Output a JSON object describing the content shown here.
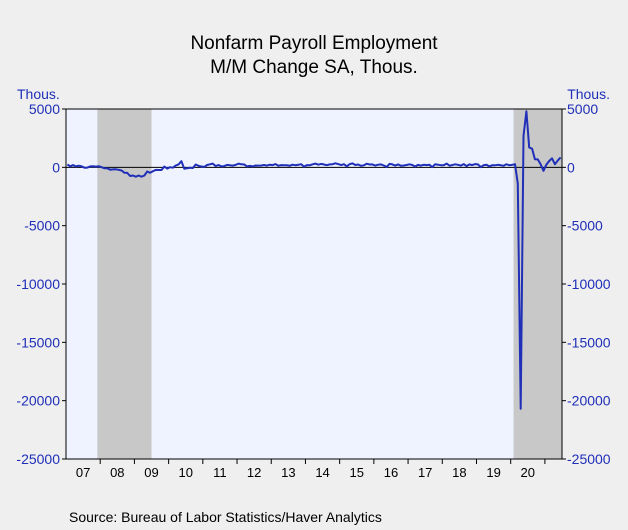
{
  "chart_data": {
    "type": "line",
    "title": "Nonfarm Payroll Employment",
    "subtitle": "M/M Change   SA, Thous.",
    "ylabel_left": "Thous.",
    "ylabel_right": "Thous.",
    "ylim": [
      -25000,
      5000
    ],
    "yticks": [
      5000,
      0,
      -5000,
      -10000,
      -15000,
      -20000,
      -25000
    ],
    "ytick_labels": [
      "5000",
      "0",
      "-5000",
      "-10000",
      "-15000",
      "-20000",
      "-25000"
    ],
    "x_start": "2007-01",
    "x_end": "2021-06",
    "xtick_labels": [
      "07",
      "08",
      "09",
      "10",
      "11",
      "12",
      "13",
      "14",
      "15",
      "16",
      "17",
      "18",
      "19",
      "20"
    ],
    "recessions": [
      {
        "start": "2007-12",
        "end": "2009-06"
      },
      {
        "start": "2020-02",
        "end": "2021-06"
      }
    ],
    "colors": {
      "line": "#1f2fb8",
      "recession": "#c8c8c8",
      "plot_bg": "#eef3ff",
      "zero_line": "#000000"
    },
    "grid": false,
    "series": [
      {
        "x": [
          "2007-01",
          "2007-02",
          "2007-03",
          "2007-04",
          "2007-05",
          "2007-06",
          "2007-07",
          "2007-08",
          "2007-09",
          "2007-10",
          "2007-11",
          "2007-12",
          "2008-01",
          "2008-02",
          "2008-03",
          "2008-04",
          "2008-05",
          "2008-06",
          "2008-07",
          "2008-08",
          "2008-09",
          "2008-10",
          "2008-11",
          "2008-12",
          "2009-01",
          "2009-02",
          "2009-03",
          "2009-04",
          "2009-05",
          "2009-06",
          "2009-07",
          "2009-08",
          "2009-09",
          "2009-10",
          "2009-11",
          "2009-12",
          "2010-01",
          "2010-02",
          "2010-03",
          "2010-04",
          "2010-05",
          "2010-06",
          "2010-07",
          "2010-08",
          "2010-09",
          "2010-10",
          "2010-11",
          "2010-12",
          "2011-01",
          "2011-02",
          "2011-03",
          "2011-04",
          "2011-05",
          "2011-06",
          "2011-07",
          "2011-08",
          "2011-09",
          "2011-10",
          "2011-11",
          "2011-12",
          "2012-01",
          "2012-02",
          "2012-03",
          "2012-04",
          "2012-05",
          "2012-06",
          "2012-07",
          "2012-08",
          "2012-09",
          "2012-10",
          "2012-11",
          "2012-12",
          "2013-01",
          "2013-02",
          "2013-03",
          "2013-04",
          "2013-05",
          "2013-06",
          "2013-07",
          "2013-08",
          "2013-09",
          "2013-10",
          "2013-11",
          "2013-12",
          "2014-01",
          "2014-02",
          "2014-03",
          "2014-04",
          "2014-05",
          "2014-06",
          "2014-07",
          "2014-08",
          "2014-09",
          "2014-10",
          "2014-11",
          "2014-12",
          "2015-01",
          "2015-02",
          "2015-03",
          "2015-04",
          "2015-05",
          "2015-06",
          "2015-07",
          "2015-08",
          "2015-09",
          "2015-10",
          "2015-11",
          "2015-12",
          "2016-01",
          "2016-02",
          "2016-03",
          "2016-04",
          "2016-05",
          "2016-06",
          "2016-07",
          "2016-08",
          "2016-09",
          "2016-10",
          "2016-11",
          "2016-12",
          "2017-01",
          "2017-02",
          "2017-03",
          "2017-04",
          "2017-05",
          "2017-06",
          "2017-07",
          "2017-08",
          "2017-09",
          "2017-10",
          "2017-11",
          "2017-12",
          "2018-01",
          "2018-02",
          "2018-03",
          "2018-04",
          "2018-05",
          "2018-06",
          "2018-07",
          "2018-08",
          "2018-09",
          "2018-10",
          "2018-11",
          "2018-12",
          "2019-01",
          "2019-02",
          "2019-03",
          "2019-04",
          "2019-05",
          "2019-06",
          "2019-07",
          "2019-08",
          "2019-09",
          "2019-10",
          "2019-11",
          "2019-12",
          "2020-01",
          "2020-02",
          "2020-03",
          "2020-04",
          "2020-05",
          "2020-06",
          "2020-07",
          "2020-08",
          "2020-09",
          "2020-10",
          "2020-11",
          "2020-12",
          "2021-01",
          "2021-02",
          "2021-03",
          "2021-04",
          "2021-05",
          "2021-06"
        ],
        "values": [
          240,
          90,
          190,
          80,
          140,
          80,
          -30,
          -20,
          80,
          90,
          60,
          100,
          10,
          -80,
          -80,
          -200,
          -180,
          -170,
          -210,
          -270,
          -460,
          -480,
          -740,
          -700,
          -800,
          -700,
          -800,
          -700,
          -360,
          -470,
          -330,
          -220,
          -230,
          -230,
          60,
          -110,
          10,
          -30,
          160,
          250,
          530,
          -130,
          -70,
          -40,
          -60,
          240,
          120,
          70,
          40,
          200,
          260,
          320,
          110,
          200,
          80,
          110,
          210,
          170,
          150,
          210,
          320,
          260,
          240,
          80,
          120,
          80,
          160,
          150,
          160,
          200,
          150,
          230,
          190,
          280,
          140,
          190,
          170,
          170,
          140,
          230,
          180,
          220,
          270,
          60,
          190,
          170,
          260,
          320,
          230,
          290,
          240,
          180,
          250,
          270,
          350,
          280,
          190,
          270,
          90,
          270,
          340,
          200,
          240,
          130,
          170,
          310,
          240,
          250,
          150,
          230,
          250,
          160,
          40,
          290,
          250,
          150,
          250,
          130,
          160,
          200,
          260,
          200,
          70,
          210,
          150,
          220,
          190,
          220,
          20,
          260,
          230,
          180,
          180,
          320,
          150,
          190,
          260,
          220,
          150,
          280,
          110,
          250,
          190,
          280,
          250,
          20,
          180,
          220,
          80,
          180,
          170,
          220,
          180,
          130,
          260,
          180,
          210,
          270,
          -1400,
          -20700,
          2700,
          4800,
          1700,
          1600,
          700,
          680,
          260,
          -300,
          230,
          540,
          770,
          270,
          580,
          850
        ]
      }
    ]
  },
  "footer": {
    "source": "Source:  Bureau of Labor Statistics/Haver Analytics"
  }
}
